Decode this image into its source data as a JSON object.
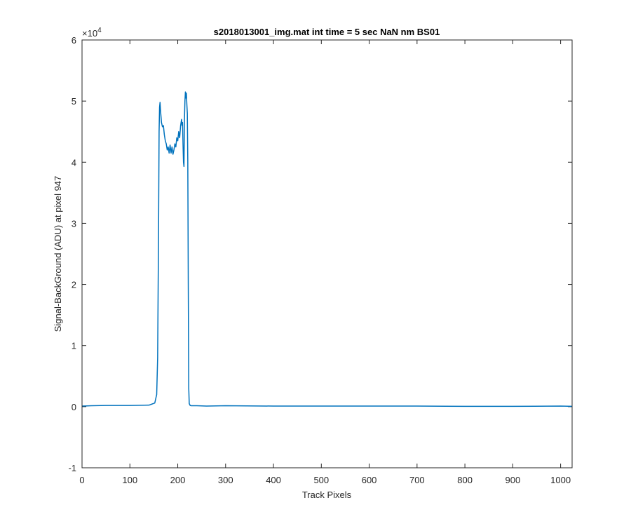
{
  "chart_data": {
    "type": "line",
    "title": "s2018013001_img.mat int time = 5 sec  NaN nm BS01",
    "xlabel": "Track Pixels",
    "ylabel": "Signal-BackGround (ADU) at pixel 947",
    "xlim": [
      0,
      1024
    ],
    "ylim": [
      -10000,
      60000
    ],
    "y_exponent_label": "×10",
    "y_exponent_power": "4",
    "xticks": [
      0,
      100,
      200,
      300,
      400,
      500,
      600,
      700,
      800,
      900,
      1000
    ],
    "xtick_labels": [
      "0",
      "100",
      "200",
      "300",
      "400",
      "500",
      "600",
      "700",
      "800",
      "900",
      "1000"
    ],
    "yticks": [
      -10000,
      0,
      10000,
      20000,
      30000,
      40000,
      50000,
      60000
    ],
    "ytick_labels": [
      "-1",
      "0",
      "1",
      "2",
      "3",
      "4",
      "5",
      "6"
    ],
    "grid": false,
    "line_color": "#0072BD",
    "series": [
      {
        "x": [
          0,
          20,
          50,
          100,
          140,
          152,
          156,
          158,
          160,
          161,
          162,
          163,
          164,
          165,
          166,
          168,
          170,
          172,
          174,
          176,
          178,
          180,
          182,
          184,
          186,
          188,
          190,
          192,
          194,
          196,
          198,
          200,
          202,
          204,
          206,
          208,
          209,
          210,
          211,
          212,
          213,
          214,
          215,
          216,
          217,
          218,
          219,
          220,
          221,
          222,
          223,
          224,
          226,
          228,
          230,
          240,
          260,
          300,
          400,
          500,
          600,
          700,
          800,
          900,
          1000,
          1024
        ],
        "y": [
          100,
          150,
          200,
          200,
          250,
          600,
          2000,
          8000,
          30000,
          45000,
          49000,
          49800,
          48500,
          47500,
          46500,
          45800,
          46000,
          44500,
          43500,
          43000,
          42000,
          42500,
          41500,
          42800,
          41500,
          42500,
          41300,
          42000,
          43000,
          42500,
          44000,
          43500,
          45000,
          44000,
          46000,
          47000,
          46000,
          46500,
          43000,
          40000,
          39300,
          47000,
          50000,
          51500,
          50500,
          51300,
          49500,
          48000,
          40000,
          20000,
          3000,
          500,
          200,
          150,
          150,
          150,
          100,
          150,
          100,
          100,
          100,
          100,
          50,
          50,
          100,
          50
        ]
      }
    ]
  }
}
